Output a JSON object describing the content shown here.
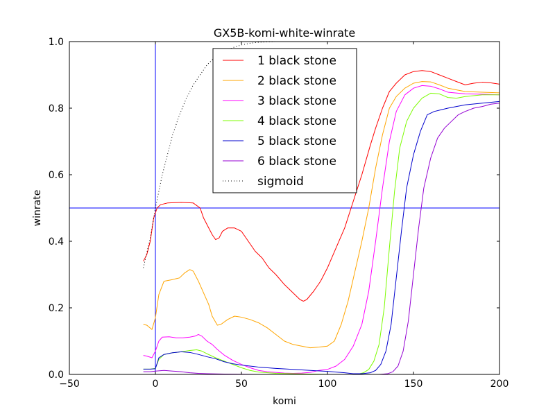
{
  "chart_data": {
    "type": "line",
    "title": "GX5B-komi-white-winrate",
    "xlabel": "komi",
    "ylabel": "winrate",
    "xlim": [
      -50,
      200
    ],
    "ylim": [
      0.0,
      1.0
    ],
    "xticks": [
      -50,
      0,
      50,
      100,
      150,
      200
    ],
    "xtick_labels": [
      "−50",
      "0",
      "50",
      "100",
      "150",
      "200"
    ],
    "yticks": [
      0.0,
      0.2,
      0.4,
      0.6,
      0.8,
      1.0
    ],
    "ytick_labels": [
      "0.0",
      "0.2",
      "0.4",
      "0.6",
      "0.8",
      "1.0"
    ],
    "grid": false,
    "legend_position": "top-center",
    "reference_lines": [
      {
        "orientation": "vertical",
        "x": 0,
        "color": "#0000ff"
      },
      {
        "orientation": "horizontal",
        "y": 0.5,
        "color": "#0000ff"
      }
    ],
    "series": [
      {
        "name": "1 black stone",
        "color": "#ff0000",
        "style": "solid",
        "points": [
          [
            -7,
            0.34
          ],
          [
            -5,
            0.36
          ],
          [
            -3,
            0.4
          ],
          [
            -1,
            0.47
          ],
          [
            1,
            0.5
          ],
          [
            3,
            0.51
          ],
          [
            7,
            0.515
          ],
          [
            15,
            0.517
          ],
          [
            22,
            0.515
          ],
          [
            26,
            0.5
          ],
          [
            28,
            0.47
          ],
          [
            30,
            0.45
          ],
          [
            33,
            0.42
          ],
          [
            35,
            0.405
          ],
          [
            37,
            0.41
          ],
          [
            39,
            0.43
          ],
          [
            42,
            0.44
          ],
          [
            46,
            0.44
          ],
          [
            50,
            0.43
          ],
          [
            54,
            0.4
          ],
          [
            58,
            0.37
          ],
          [
            62,
            0.35
          ],
          [
            66,
            0.32
          ],
          [
            70,
            0.3
          ],
          [
            75,
            0.27
          ],
          [
            80,
            0.245
          ],
          [
            84,
            0.225
          ],
          [
            86,
            0.22
          ],
          [
            88,
            0.225
          ],
          [
            92,
            0.25
          ],
          [
            96,
            0.28
          ],
          [
            100,
            0.32
          ],
          [
            105,
            0.38
          ],
          [
            110,
            0.44
          ],
          [
            115,
            0.52
          ],
          [
            120,
            0.6
          ],
          [
            125,
            0.69
          ],
          [
            128,
            0.74
          ],
          [
            132,
            0.8
          ],
          [
            136,
            0.85
          ],
          [
            140,
            0.875
          ],
          [
            145,
            0.9
          ],
          [
            150,
            0.91
          ],
          [
            155,
            0.913
          ],
          [
            160,
            0.91
          ],
          [
            165,
            0.9
          ],
          [
            170,
            0.89
          ],
          [
            175,
            0.88
          ],
          [
            180,
            0.87
          ],
          [
            185,
            0.875
          ],
          [
            190,
            0.878
          ],
          [
            195,
            0.876
          ],
          [
            200,
            0.872
          ]
        ]
      },
      {
        "name": "2 black stone",
        "color": "#ffa500",
        "style": "solid",
        "points": [
          [
            -7,
            0.15
          ],
          [
            -5,
            0.148
          ],
          [
            -2,
            0.135
          ],
          [
            0,
            0.17
          ],
          [
            2,
            0.24
          ],
          [
            5,
            0.28
          ],
          [
            10,
            0.285
          ],
          [
            14,
            0.29
          ],
          [
            17,
            0.305
          ],
          [
            20,
            0.315
          ],
          [
            22,
            0.31
          ],
          [
            25,
            0.28
          ],
          [
            28,
            0.245
          ],
          [
            31,
            0.21
          ],
          [
            33,
            0.175
          ],
          [
            36,
            0.148
          ],
          [
            38,
            0.15
          ],
          [
            42,
            0.165
          ],
          [
            46,
            0.175
          ],
          [
            50,
            0.172
          ],
          [
            55,
            0.165
          ],
          [
            60,
            0.155
          ],
          [
            65,
            0.14
          ],
          [
            70,
            0.12
          ],
          [
            75,
            0.1
          ],
          [
            80,
            0.09
          ],
          [
            85,
            0.085
          ],
          [
            90,
            0.08
          ],
          [
            95,
            0.082
          ],
          [
            100,
            0.085
          ],
          [
            104,
            0.1
          ],
          [
            108,
            0.15
          ],
          [
            112,
            0.22
          ],
          [
            116,
            0.31
          ],
          [
            120,
            0.4
          ],
          [
            124,
            0.5
          ],
          [
            128,
            0.62
          ],
          [
            132,
            0.72
          ],
          [
            136,
            0.8
          ],
          [
            140,
            0.835
          ],
          [
            145,
            0.86
          ],
          [
            150,
            0.875
          ],
          [
            155,
            0.88
          ],
          [
            160,
            0.879
          ],
          [
            165,
            0.87
          ],
          [
            170,
            0.86
          ],
          [
            180,
            0.85
          ],
          [
            190,
            0.848
          ],
          [
            200,
            0.846
          ]
        ]
      },
      {
        "name": "3 black stone",
        "color": "#ff00ff",
        "style": "solid",
        "points": [
          [
            -7,
            0.057
          ],
          [
            -5,
            0.055
          ],
          [
            -2,
            0.05
          ],
          [
            0,
            0.07
          ],
          [
            2,
            0.1
          ],
          [
            4,
            0.112
          ],
          [
            8,
            0.113
          ],
          [
            12,
            0.11
          ],
          [
            16,
            0.11
          ],
          [
            20,
            0.112
          ],
          [
            23,
            0.115
          ],
          [
            25,
            0.12
          ],
          [
            27,
            0.115
          ],
          [
            30,
            0.1
          ],
          [
            33,
            0.09
          ],
          [
            36,
            0.075
          ],
          [
            40,
            0.058
          ],
          [
            45,
            0.042
          ],
          [
            50,
            0.03
          ],
          [
            55,
            0.02
          ],
          [
            60,
            0.012
          ],
          [
            65,
            0.008
          ],
          [
            70,
            0.006
          ],
          [
            75,
            0.004
          ],
          [
            80,
            0.003
          ],
          [
            85,
            0.004
          ],
          [
            90,
            0.006
          ],
          [
            95,
            0.012
          ],
          [
            100,
            0.015
          ],
          [
            105,
            0.025
          ],
          [
            110,
            0.045
          ],
          [
            115,
            0.085
          ],
          [
            120,
            0.15
          ],
          [
            124,
            0.25
          ],
          [
            128,
            0.4
          ],
          [
            132,
            0.56
          ],
          [
            136,
            0.7
          ],
          [
            140,
            0.79
          ],
          [
            145,
            0.84
          ],
          [
            150,
            0.86
          ],
          [
            155,
            0.868
          ],
          [
            160,
            0.866
          ],
          [
            165,
            0.858
          ],
          [
            170,
            0.848
          ],
          [
            180,
            0.843
          ],
          [
            190,
            0.842
          ],
          [
            200,
            0.84
          ]
        ]
      },
      {
        "name": "4 black stone",
        "color": "#7cfc00",
        "style": "solid",
        "points": [
          [
            -7,
            0.016
          ],
          [
            -3,
            0.016
          ],
          [
            0,
            0.018
          ],
          [
            2,
            0.045
          ],
          [
            5,
            0.06
          ],
          [
            10,
            0.065
          ],
          [
            15,
            0.068
          ],
          [
            20,
            0.072
          ],
          [
            24,
            0.074
          ],
          [
            27,
            0.07
          ],
          [
            30,
            0.062
          ],
          [
            35,
            0.05
          ],
          [
            40,
            0.04
          ],
          [
            45,
            0.03
          ],
          [
            50,
            0.02
          ],
          [
            55,
            0.012
          ],
          [
            60,
            0.007
          ],
          [
            70,
            0.003
          ],
          [
            80,
            0.002
          ],
          [
            90,
            0.001
          ],
          [
            100,
            0.0
          ],
          [
            110,
            0.0
          ],
          [
            115,
            0.0
          ],
          [
            118,
            0.001
          ],
          [
            121,
            0.005
          ],
          [
            124,
            0.015
          ],
          [
            127,
            0.04
          ],
          [
            130,
            0.09
          ],
          [
            133,
            0.2
          ],
          [
            136,
            0.38
          ],
          [
            139,
            0.55
          ],
          [
            142,
            0.68
          ],
          [
            146,
            0.76
          ],
          [
            150,
            0.8
          ],
          [
            155,
            0.83
          ],
          [
            160,
            0.845
          ],
          [
            165,
            0.843
          ],
          [
            170,
            0.832
          ],
          [
            175,
            0.83
          ],
          [
            180,
            0.835
          ],
          [
            190,
            0.84
          ],
          [
            200,
            0.84
          ]
        ]
      },
      {
        "name": "5 black stone",
        "color": "#0000cd",
        "style": "solid",
        "points": [
          [
            -7,
            0.016
          ],
          [
            -3,
            0.016
          ],
          [
            0,
            0.017
          ],
          [
            2,
            0.05
          ],
          [
            5,
            0.06
          ],
          [
            10,
            0.065
          ],
          [
            15,
            0.068
          ],
          [
            20,
            0.066
          ],
          [
            25,
            0.06
          ],
          [
            30,
            0.053
          ],
          [
            35,
            0.047
          ],
          [
            40,
            0.038
          ],
          [
            45,
            0.032
          ],
          [
            50,
            0.028
          ],
          [
            55,
            0.025
          ],
          [
            60,
            0.022
          ],
          [
            70,
            0.018
          ],
          [
            80,
            0.015
          ],
          [
            90,
            0.012
          ],
          [
            100,
            0.009
          ],
          [
            110,
            0.005
          ],
          [
            115,
            0.002
          ],
          [
            120,
            0.002
          ],
          [
            125,
            0.005
          ],
          [
            128,
            0.012
          ],
          [
            131,
            0.03
          ],
          [
            134,
            0.07
          ],
          [
            137,
            0.15
          ],
          [
            140,
            0.29
          ],
          [
            143,
            0.43
          ],
          [
            146,
            0.56
          ],
          [
            150,
            0.66
          ],
          [
            154,
            0.73
          ],
          [
            158,
            0.78
          ],
          [
            162,
            0.79
          ],
          [
            166,
            0.795
          ],
          [
            170,
            0.8
          ],
          [
            175,
            0.805
          ],
          [
            180,
            0.81
          ],
          [
            190,
            0.815
          ],
          [
            200,
            0.82
          ]
        ]
      },
      {
        "name": "6 black stone",
        "color": "#9400d3",
        "style": "solid",
        "points": [
          [
            -7,
            0.008
          ],
          [
            -3,
            0.008
          ],
          [
            0,
            0.01
          ],
          [
            5,
            0.012
          ],
          [
            10,
            0.01
          ],
          [
            15,
            0.008
          ],
          [
            20,
            0.005
          ],
          [
            25,
            0.003
          ],
          [
            30,
            0.002
          ],
          [
            40,
            0.001
          ],
          [
            60,
            0.0
          ],
          [
            80,
            0.0
          ],
          [
            100,
            0.0
          ],
          [
            120,
            0.0
          ],
          [
            130,
            0.0
          ],
          [
            135,
            0.002
          ],
          [
            138,
            0.008
          ],
          [
            141,
            0.025
          ],
          [
            144,
            0.07
          ],
          [
            147,
            0.16
          ],
          [
            150,
            0.3
          ],
          [
            153,
            0.44
          ],
          [
            156,
            0.56
          ],
          [
            160,
            0.65
          ],
          [
            164,
            0.71
          ],
          [
            168,
            0.74
          ],
          [
            172,
            0.76
          ],
          [
            176,
            0.78
          ],
          [
            180,
            0.79
          ],
          [
            185,
            0.8
          ],
          [
            190,
            0.805
          ],
          [
            195,
            0.812
          ],
          [
            200,
            0.815
          ]
        ]
      },
      {
        "name": "sigmoid",
        "color": "#000000",
        "style": "dotted",
        "points": [
          [
            -7,
            0.32
          ],
          [
            -5,
            0.365
          ],
          [
            -3,
            0.41
          ],
          [
            -1,
            0.47
          ],
          [
            0,
            0.5
          ],
          [
            2,
            0.55
          ],
          [
            4,
            0.6
          ],
          [
            7,
            0.66
          ],
          [
            10,
            0.72
          ],
          [
            14,
            0.78
          ],
          [
            18,
            0.83
          ],
          [
            22,
            0.87
          ],
          [
            26,
            0.9
          ],
          [
            30,
            0.93
          ],
          [
            35,
            0.955
          ],
          [
            40,
            0.97
          ],
          [
            45,
            0.982
          ],
          [
            50,
            0.99
          ],
          [
            55,
            0.995
          ],
          [
            60,
            0.998
          ],
          [
            65,
            0.999
          ],
          [
            70,
            1.0
          ],
          [
            75,
            1.0
          ]
        ]
      }
    ]
  }
}
